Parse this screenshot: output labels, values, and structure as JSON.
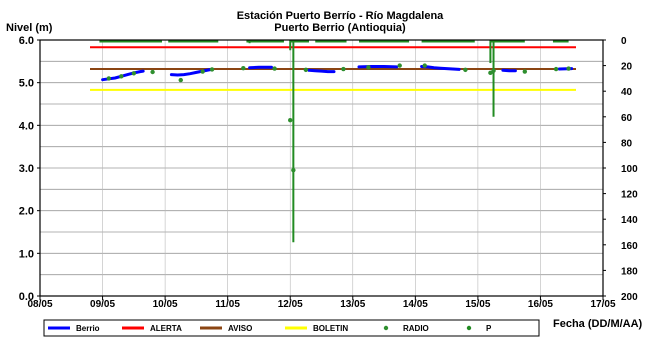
{
  "chart_data": {
    "type": "line",
    "title": "Estación Puerto Berrío - Río Magdalena",
    "subtitle": "Puerto Berrio (Antioquia)",
    "ylabel": "Nivel (m)",
    "xlabel": "Fecha (DD/M/AA)",
    "ylim": [
      0,
      6
    ],
    "y2lim": [
      0,
      200
    ],
    "y2_reversed": true,
    "x_ticks": [
      "08/05",
      "09/05",
      "10/05",
      "11/05",
      "12/05",
      "13/05",
      "14/05",
      "15/05",
      "16/05",
      "17/05"
    ],
    "y_ticks": [
      "0.0",
      "1.0",
      "2.0",
      "3.0",
      "4.0",
      "5.0",
      "6.0"
    ],
    "y2_ticks": [
      "0",
      "20",
      "40",
      "60",
      "80",
      "100",
      "120",
      "140",
      "160",
      "180",
      "200"
    ],
    "grid": true,
    "legend_position": "bottom",
    "thresholds": [
      {
        "name": "ALERTA",
        "value": 5.83,
        "color": "#ff0000"
      },
      {
        "name": "AVISO",
        "value": 5.32,
        "color": "#8b4513"
      },
      {
        "name": "BOLETIN",
        "value": 4.83,
        "color": "#ffff00"
      }
    ],
    "series": [
      {
        "name": "Berrio",
        "color": "#0000ff",
        "axis": "left",
        "segments": [
          [
            [
              9.0,
              5.07
            ],
            [
              9.1,
              5.09
            ],
            [
              9.2,
              5.11
            ],
            [
              9.3,
              5.15
            ],
            [
              9.4,
              5.19
            ],
            [
              9.5,
              5.23
            ],
            [
              9.6,
              5.26
            ],
            [
              9.65,
              5.27
            ]
          ],
          [
            [
              10.1,
              5.19
            ],
            [
              10.2,
              5.18
            ],
            [
              10.3,
              5.19
            ],
            [
              10.4,
              5.21
            ],
            [
              10.5,
              5.24
            ],
            [
              10.6,
              5.27
            ],
            [
              10.7,
              5.3
            ],
            [
              10.75,
              5.31
            ]
          ],
          [
            [
              11.35,
              5.35
            ],
            [
              11.5,
              5.36
            ],
            [
              11.7,
              5.36
            ]
          ],
          [
            [
              12.3,
              5.29
            ],
            [
              12.4,
              5.28
            ],
            [
              12.5,
              5.27
            ],
            [
              12.6,
              5.26
            ],
            [
              12.7,
              5.26
            ]
          ],
          [
            [
              13.1,
              5.37
            ],
            [
              13.3,
              5.38
            ],
            [
              13.5,
              5.38
            ],
            [
              13.7,
              5.37
            ]
          ],
          [
            [
              14.1,
              5.38
            ],
            [
              14.2,
              5.37
            ],
            [
              14.3,
              5.35
            ],
            [
              14.4,
              5.34
            ],
            [
              14.5,
              5.33
            ],
            [
              14.6,
              5.32
            ],
            [
              14.7,
              5.31
            ]
          ],
          [
            [
              15.4,
              5.29
            ],
            [
              15.5,
              5.28
            ],
            [
              15.6,
              5.28
            ]
          ],
          [
            [
              16.3,
              5.32
            ],
            [
              16.5,
              5.33
            ]
          ]
        ]
      },
      {
        "name": "RADIO",
        "color": "#2f8f2f",
        "axis": "left",
        "points": [
          [
            9.1,
            5.1
          ],
          [
            9.3,
            5.15
          ],
          [
            9.5,
            5.22
          ],
          [
            9.8,
            5.25
          ],
          [
            10.25,
            5.06
          ],
          [
            10.6,
            5.26
          ],
          [
            10.75,
            5.31
          ],
          [
            11.25,
            5.34
          ],
          [
            11.75,
            5.33
          ],
          [
            12.0,
            4.12
          ],
          [
            12.05,
            2.95
          ],
          [
            12.25,
            5.3
          ],
          [
            12.85,
            5.32
          ],
          [
            13.25,
            5.36
          ],
          [
            13.75,
            5.4
          ],
          [
            14.15,
            5.4
          ],
          [
            14.8,
            5.3
          ],
          [
            15.2,
            5.23
          ],
          [
            15.25,
            5.28
          ],
          [
            15.75,
            5.26
          ],
          [
            16.25,
            5.32
          ],
          [
            16.45,
            5.33
          ]
        ]
      },
      {
        "name": "P",
        "color": "#228b22",
        "axis": "right",
        "blocks": [
          [
            8.95,
            9.95,
            0
          ],
          [
            10.05,
            10.85,
            0
          ],
          [
            11.3,
            11.9,
            0
          ],
          [
            12.0,
            12.3,
            0
          ],
          [
            12.4,
            12.9,
            0
          ],
          [
            13.1,
            13.9,
            0
          ],
          [
            14.1,
            14.95,
            0
          ],
          [
            15.2,
            15.75,
            0
          ],
          [
            16.2,
            16.45,
            0
          ]
        ],
        "dips": [
          [
            9.25,
            1.5
          ],
          [
            11.35,
            2.5
          ],
          [
            12.0,
            8
          ],
          [
            12.05,
            158
          ],
          [
            15.2,
            18
          ],
          [
            15.25,
            60
          ]
        ]
      }
    ]
  }
}
